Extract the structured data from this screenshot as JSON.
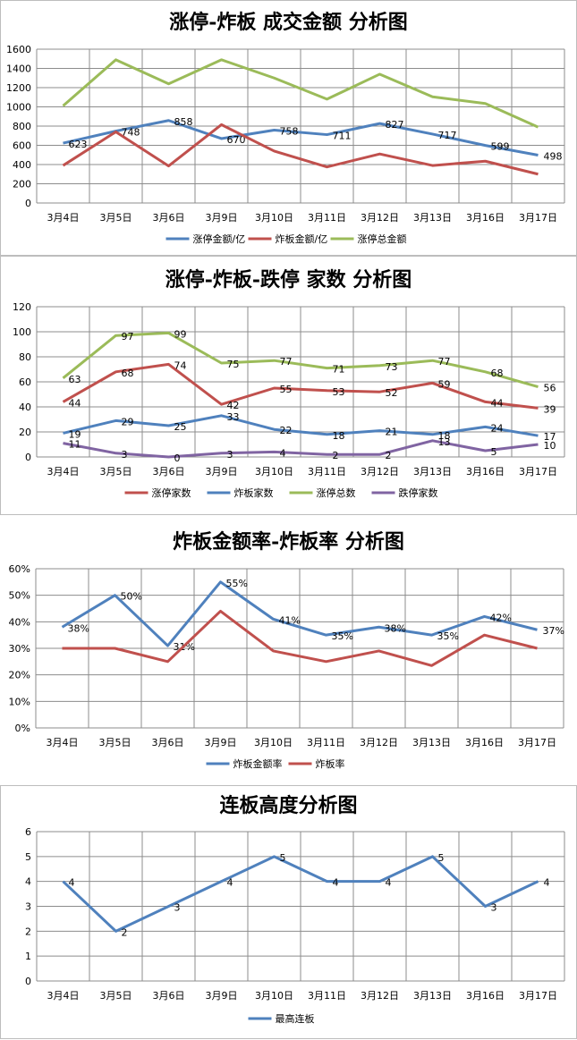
{
  "watermark": "",
  "chart_data": [
    {
      "type": "line",
      "title": "涨停-炸板 成交金额 分析图",
      "categories": [
        "3月4日",
        "3月5日",
        "3月6日",
        "3月9日",
        "3月10日",
        "3月11日",
        "3月12日",
        "3月13日",
        "3月16日",
        "3月17日"
      ],
      "ylim": [
        0,
        1600
      ],
      "yticks": [
        0,
        200,
        400,
        600,
        800,
        1000,
        1200,
        1400,
        1600
      ],
      "ytick_format": "int",
      "grid": true,
      "legend_position": "bottom",
      "series": [
        {
          "name": "涨停金额/亿",
          "color": "#4f81bd",
          "values": [
            623,
            748,
            858,
            670,
            758,
            711,
            827,
            717,
            599,
            498
          ],
          "labels": true
        },
        {
          "name": "炸板金额/亿",
          "color": "#c0504d",
          "values": [
            390,
            740,
            385,
            815,
            540,
            375,
            510,
            390,
            435,
            300
          ],
          "labels": false
        },
        {
          "name": "涨停总金额",
          "color": "#9bbb59",
          "values": [
            1010,
            1490,
            1240,
            1490,
            1300,
            1080,
            1340,
            1105,
            1035,
            790
          ],
          "labels": false
        }
      ]
    },
    {
      "type": "line",
      "title": "涨停-炸板-跌停 家数 分析图",
      "categories": [
        "3月4日",
        "3月5日",
        "3月6日",
        "3月9日",
        "3月10日",
        "3月11日",
        "3月12日",
        "3月13日",
        "3月16日",
        "3月17日"
      ],
      "ylim": [
        0,
        120
      ],
      "yticks": [
        0,
        20,
        40,
        60,
        80,
        100,
        120
      ],
      "ytick_format": "int",
      "grid": true,
      "legend_position": "bottom",
      "series": [
        {
          "name": "涨停家数",
          "color": "#c0504d",
          "values": [
            44,
            68,
            74,
            42,
            55,
            53,
            52,
            59,
            44,
            39
          ],
          "labels": true
        },
        {
          "name": "炸板家数",
          "color": "#4f81bd",
          "values": [
            19,
            29,
            25,
            33,
            22,
            18,
            21,
            18,
            24,
            17
          ],
          "labels": true
        },
        {
          "name": "涨停总数",
          "color": "#9bbb59",
          "values": [
            63,
            97,
            99,
            75,
            77,
            71,
            73,
            77,
            68,
            56
          ],
          "labels": true
        },
        {
          "name": "跌停家数",
          "color": "#8064a2",
          "values": [
            11,
            3,
            0,
            3,
            4,
            2,
            2,
            13,
            5,
            10
          ],
          "labels": true
        }
      ]
    },
    {
      "type": "line",
      "title": "炸板金额率-炸板率 分析图",
      "categories": [
        "3月4日",
        "3月5日",
        "3月6日",
        "3月9日",
        "3月10日",
        "3月11日",
        "3月12日",
        "3月13日",
        "3月16日",
        "3月17日"
      ],
      "ylim": [
        0,
        0.6
      ],
      "yticks": [
        0,
        0.1,
        0.2,
        0.3,
        0.4,
        0.5,
        0.6
      ],
      "ytick_format": "pct",
      "grid": true,
      "legend_position": "bottom",
      "series": [
        {
          "name": "炸板金额率",
          "color": "#4f81bd",
          "values": [
            0.38,
            0.5,
            0.31,
            0.55,
            0.41,
            0.35,
            0.38,
            0.35,
            0.42,
            0.37
          ],
          "labels": true
        },
        {
          "name": "炸板率",
          "color": "#c0504d",
          "values": [
            0.3,
            0.3,
            0.25,
            0.44,
            0.29,
            0.25,
            0.29,
            0.235,
            0.35,
            0.3
          ],
          "labels": false
        }
      ]
    },
    {
      "type": "line",
      "title": "连板高度分析图",
      "categories": [
        "3月4日",
        "3月5日",
        "3月6日",
        "3月9日",
        "3月10日",
        "3月11日",
        "3月12日",
        "3月13日",
        "3月16日",
        "3月17日"
      ],
      "ylim": [
        0,
        6
      ],
      "yticks": [
        0,
        1,
        2,
        3,
        4,
        5,
        6
      ],
      "ytick_format": "int",
      "grid": true,
      "legend_position": "bottom",
      "series": [
        {
          "name": "最高连板",
          "color": "#4f81bd",
          "values": [
            4,
            2,
            3,
            4,
            5,
            4,
            4,
            5,
            3,
            4
          ],
          "labels": true
        }
      ]
    }
  ]
}
